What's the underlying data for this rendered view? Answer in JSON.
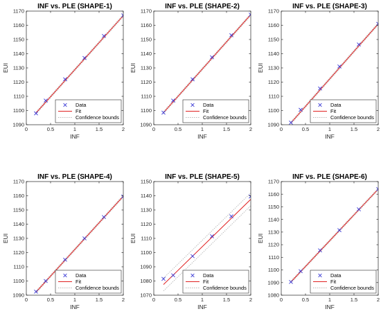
{
  "colors": {
    "data": "#3b3bd6",
    "fit": "#e02020",
    "bounds": "#b7b7b7",
    "axis": "#262626",
    "legend_border": "#262626"
  },
  "chart_data": [
    {
      "type": "scatter",
      "title": "INF vs. PLE (SHAPE-1)",
      "xlabel": "INF",
      "ylabel": "EUI",
      "xlim": [
        0,
        2
      ],
      "ylim": [
        1090,
        1170
      ],
      "xticks": [
        0,
        0.5,
        1,
        1.5,
        2
      ],
      "yticks": [
        1090,
        1100,
        1110,
        1120,
        1130,
        1140,
        1150,
        1160,
        1170
      ],
      "grid": false,
      "legend_position": "bottom-right",
      "legend": [
        "Data",
        "Fit",
        "Confidence bounds"
      ],
      "data": {
        "x": [
          0.2,
          0.4,
          0.8,
          1.2,
          1.6,
          2.0
        ],
        "y": [
          1098,
          1107,
          1122,
          1137,
          1152.5,
          1167
        ]
      },
      "fit": {
        "x": [
          0.2,
          2.0
        ],
        "y": [
          1098.3,
          1166.8
        ]
      },
      "bounds_halfwidth": 0.8
    },
    {
      "type": "scatter",
      "title": "INF vs. PLE (SHAPE-2)",
      "xlabel": "INF",
      "ylabel": "EUI",
      "xlim": [
        0,
        2
      ],
      "ylim": [
        1090,
        1170
      ],
      "xticks": [
        0,
        0.5,
        1,
        1.5,
        2
      ],
      "yticks": [
        1090,
        1100,
        1110,
        1120,
        1130,
        1140,
        1150,
        1160,
        1170
      ],
      "grid": false,
      "legend_position": "bottom-right",
      "legend": [
        "Data",
        "Fit",
        "Confidence bounds"
      ],
      "data": {
        "x": [
          0.2,
          0.4,
          0.8,
          1.2,
          1.6,
          2.0
        ],
        "y": [
          1098.5,
          1107,
          1122,
          1137.5,
          1153,
          1167.5
        ]
      },
      "fit": {
        "x": [
          0.2,
          2.0
        ],
        "y": [
          1098.5,
          1167.5
        ]
      },
      "bounds_halfwidth": 0.8
    },
    {
      "type": "scatter",
      "title": "INF vs. PLE (SHAPE-3)",
      "xlabel": "INF",
      "ylabel": "EUI",
      "xlim": [
        0,
        2
      ],
      "ylim": [
        1090,
        1170
      ],
      "xticks": [
        0,
        0.5,
        1,
        1.5,
        2
      ],
      "yticks": [
        1090,
        1100,
        1110,
        1120,
        1130,
        1140,
        1150,
        1160,
        1170
      ],
      "grid": false,
      "legend_position": "bottom-right",
      "legend": [
        "Data",
        "Fit",
        "Confidence bounds"
      ],
      "data": {
        "x": [
          0.2,
          0.4,
          0.8,
          1.2,
          1.6,
          2.0
        ],
        "y": [
          1091.5,
          1100.5,
          1115.5,
          1131,
          1146.5,
          1161
        ]
      },
      "fit": {
        "x": [
          0.2,
          2.0
        ],
        "y": [
          1091.3,
          1161
        ]
      },
      "bounds_halfwidth": 0.8
    },
    {
      "type": "scatter",
      "title": "INF vs. PLE (SHAPE-4)",
      "xlabel": "INF",
      "ylabel": "EUI",
      "xlim": [
        0,
        2
      ],
      "ylim": [
        1090,
        1170
      ],
      "xticks": [
        0,
        0.5,
        1,
        1.5,
        2
      ],
      "yticks": [
        1090,
        1100,
        1110,
        1120,
        1130,
        1140,
        1150,
        1160,
        1170
      ],
      "grid": false,
      "legend_position": "bottom-right",
      "legend": [
        "Data",
        "Fit",
        "Confidence bounds"
      ],
      "data": {
        "x": [
          0.2,
          0.4,
          0.8,
          1.2,
          1.6,
          2.0
        ],
        "y": [
          1092.5,
          1100,
          1115,
          1130,
          1145,
          1159.5
        ]
      },
      "fit": {
        "x": [
          0.2,
          2.0
        ],
        "y": [
          1092.2,
          1159.7
        ]
      },
      "bounds_halfwidth": 0.8
    },
    {
      "type": "scatter",
      "title": "INF vs. PLE (SHAPE-5)",
      "xlabel": "INF",
      "ylabel": "EUI",
      "xlim": [
        0,
        2
      ],
      "ylim": [
        1070,
        1150
      ],
      "xticks": [
        0,
        0.5,
        1,
        1.5,
        2
      ],
      "yticks": [
        1070,
        1080,
        1090,
        1100,
        1110,
        1120,
        1130,
        1140,
        1150
      ],
      "grid": false,
      "legend_position": "bottom-right",
      "legend": [
        "Data",
        "Fit",
        "Confidence bounds"
      ],
      "data": {
        "x": [
          0.2,
          0.4,
          0.8,
          1.2,
          1.6,
          2.0
        ],
        "y": [
          1081.5,
          1084,
          1097.5,
          1111.5,
          1125.5,
          1139.5
        ]
      },
      "fit": {
        "x": [
          0.2,
          2.0
        ],
        "y": [
          1077.5,
          1137.5
        ]
      },
      "bounds_halfwidth": 4.5
    },
    {
      "type": "scatter",
      "title": "INF vs. PLE (SHAPE-6)",
      "xlabel": "INF",
      "ylabel": "EUI",
      "xlim": [
        0,
        2
      ],
      "ylim": [
        1080,
        1170
      ],
      "xticks": [
        0,
        0.5,
        1,
        1.5,
        2
      ],
      "yticks": [
        1080,
        1090,
        1100,
        1110,
        1120,
        1130,
        1140,
        1150,
        1160,
        1170
      ],
      "grid": false,
      "legend_position": "bottom-right",
      "legend": [
        "Data",
        "Fit",
        "Confidence bounds"
      ],
      "data": {
        "x": [
          0.2,
          0.4,
          0.8,
          1.2,
          1.6,
          2.0
        ],
        "y": [
          1090.5,
          1099,
          1115.5,
          1131.5,
          1148,
          1164
        ]
      },
      "fit": {
        "x": [
          0.2,
          2.0
        ],
        "y": [
          1090.5,
          1164
        ]
      },
      "bounds_halfwidth": 0.8
    }
  ]
}
